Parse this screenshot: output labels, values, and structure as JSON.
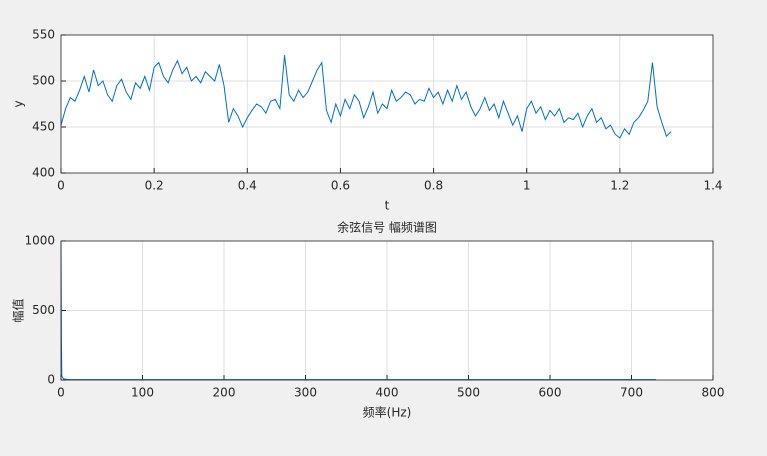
{
  "chart_data": [
    {
      "type": "line",
      "xlabel": "t",
      "ylabel": "y",
      "x": [
        0,
        0.01,
        0.02,
        0.03,
        0.04,
        0.05,
        0.06,
        0.07,
        0.08,
        0.09,
        0.1,
        0.11,
        0.12,
        0.13,
        0.14,
        0.15,
        0.16,
        0.17,
        0.18,
        0.19,
        0.2,
        0.21,
        0.22,
        0.23,
        0.24,
        0.25,
        0.26,
        0.27,
        0.28,
        0.29,
        0.3,
        0.31,
        0.32,
        0.33,
        0.34,
        0.35,
        0.36,
        0.37,
        0.38,
        0.39,
        0.4,
        0.41,
        0.42,
        0.43,
        0.44,
        0.45,
        0.46,
        0.47,
        0.48,
        0.49,
        0.5,
        0.51,
        0.52,
        0.53,
        0.54,
        0.55,
        0.56,
        0.57,
        0.58,
        0.59,
        0.6,
        0.61,
        0.62,
        0.63,
        0.64,
        0.65,
        0.66,
        0.67,
        0.68,
        0.69,
        0.7,
        0.71,
        0.72,
        0.73,
        0.74,
        0.75,
        0.76,
        0.77,
        0.78,
        0.79,
        0.8,
        0.81,
        0.82,
        0.83,
        0.84,
        0.85,
        0.86,
        0.87,
        0.88,
        0.89,
        0.9,
        0.91,
        0.92,
        0.93,
        0.94,
        0.95,
        0.96,
        0.97,
        0.98,
        0.99,
        1,
        1.01,
        1.02,
        1.03,
        1.04,
        1.05,
        1.06,
        1.07,
        1.08,
        1.09,
        1.1,
        1.11,
        1.12,
        1.13,
        1.14,
        1.15,
        1.16,
        1.17,
        1.18,
        1.19,
        1.2,
        1.21,
        1.22,
        1.23,
        1.24,
        1.25,
        1.26,
        1.27,
        1.28,
        1.29,
        1.3,
        1.31
      ],
      "values": [
        452,
        470,
        482,
        478,
        490,
        505,
        488,
        512,
        495,
        500,
        485,
        478,
        495,
        502,
        488,
        480,
        498,
        492,
        505,
        490,
        515,
        520,
        505,
        498,
        512,
        522,
        508,
        515,
        500,
        505,
        498,
        510,
        505,
        500,
        518,
        495,
        455,
        470,
        462,
        450,
        460,
        468,
        475,
        472,
        465,
        478,
        480,
        470,
        528,
        485,
        478,
        490,
        482,
        488,
        500,
        512,
        520,
        468,
        455,
        475,
        462,
        480,
        470,
        485,
        478,
        460,
        472,
        488,
        465,
        475,
        470,
        490,
        478,
        482,
        488,
        485,
        475,
        480,
        478,
        492,
        482,
        488,
        475,
        490,
        478,
        495,
        480,
        488,
        472,
        462,
        470,
        482,
        468,
        475,
        460,
        478,
        465,
        452,
        462,
        445,
        470,
        478,
        465,
        472,
        458,
        468,
        462,
        470,
        455,
        460,
        458,
        465,
        450,
        462,
        470,
        455,
        460,
        448,
        452,
        442,
        438,
        448,
        442,
        455,
        460,
        468,
        478,
        520,
        472,
        455,
        440,
        445
      ],
      "color": "#0072bd",
      "xlim": [
        0,
        1.4
      ],
      "ylim": [
        400,
        550
      ],
      "xticks": [
        0,
        0.2,
        0.4,
        0.6,
        0.8,
        1,
        1.2,
        1.4
      ],
      "yticks": [
        400,
        450,
        500,
        550
      ],
      "grid": true
    },
    {
      "type": "line",
      "title": "余弦信号 幅频谱图",
      "xlabel": "频率(Hz)",
      "ylabel": "幅值",
      "x": [
        0,
        0.5,
        1,
        3,
        10,
        730
      ],
      "values": [
        1000,
        300,
        30,
        8,
        3,
        3
      ],
      "color": "#0072bd",
      "xlim": [
        0,
        800
      ],
      "ylim": [
        0,
        1000
      ],
      "xticks": [
        0,
        100,
        200,
        300,
        400,
        500,
        600,
        700,
        800
      ],
      "yticks": [
        0,
        500,
        1000
      ],
      "grid": true
    }
  ]
}
